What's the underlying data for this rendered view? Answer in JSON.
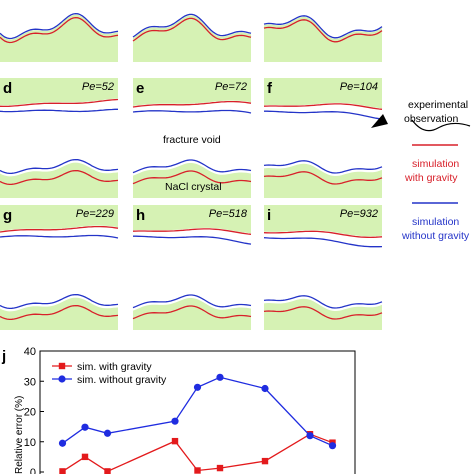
{
  "panels": [
    {
      "label": "",
      "pe": ""
    },
    {
      "label": "",
      "pe": ""
    },
    {
      "label": "",
      "pe": ""
    },
    {
      "label": "d",
      "pe": "Pe=52"
    },
    {
      "label": "e",
      "pe": "Pe=72"
    },
    {
      "label": "f",
      "pe": "Pe=104"
    },
    {
      "label": "g",
      "pe": "Pe=229"
    },
    {
      "label": "h",
      "pe": "Pe=518"
    },
    {
      "label": "i",
      "pe": "Pe=932"
    }
  ],
  "annotations": {
    "fracture_void": "fracture void",
    "nacl_crystal": "NaCl crystal",
    "experimental_line1": "experimental",
    "experimental_line2": "observation"
  },
  "legend_right": {
    "gravity_line1": "simulation",
    "gravity_line2": "with gravity",
    "nogravity_line1": "simulation",
    "nogravity_line2": "without gravity",
    "gravity_color": "#d8202a",
    "nogravity_color": "#2434c8",
    "fill_color": "#d6f2b4"
  },
  "panel_j": {
    "label": "j",
    "ylabel": "Relative error (%)"
  },
  "chart_data": {
    "type": "line",
    "ylabel": "Relative error (%)",
    "ylim": [
      0,
      40
    ],
    "yticks": [
      0,
      10,
      20,
      30,
      40
    ],
    "series": [
      {
        "name": "sim. with gravity",
        "color": "#e31a1c",
        "marker": "square",
        "x": [
          1,
          2,
          3,
          6,
          7,
          8,
          10,
          12,
          13
        ],
        "values": [
          0.2,
          5.0,
          0.2,
          10.2,
          0.5,
          1.3,
          3.6,
          12.5,
          9.7
        ]
      },
      {
        "name": "sim. without gravity",
        "color": "#1f2ce0",
        "marker": "circle",
        "x": [
          1,
          2,
          3,
          6,
          7,
          8,
          10,
          12,
          13
        ],
        "values": [
          9.5,
          14.8,
          12.8,
          16.8,
          28.0,
          31.3,
          27.6,
          12.0,
          8.7
        ]
      }
    ],
    "xlim": [
      0,
      14
    ]
  }
}
